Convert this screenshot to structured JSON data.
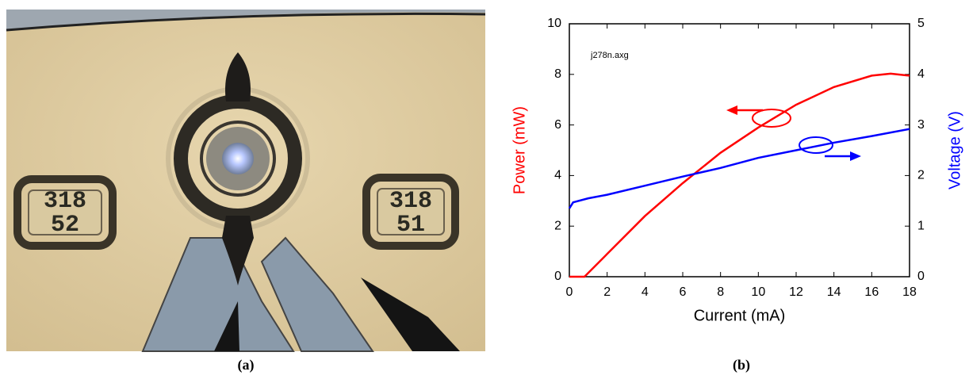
{
  "photo": {
    "chip_labels": [
      [
        "318",
        "52"
      ],
      [
        "318",
        "51"
      ]
    ]
  },
  "captions": [
    "(a)",
    "(b)"
  ],
  "chart_data": {
    "type": "line",
    "xlabel": "Current (mA)",
    "ylabel": "Power (mW)",
    "y2label": "Voltage (V)",
    "annotation": "j278n.axg",
    "xlim": [
      0,
      18
    ],
    "xticks": [
      0,
      2,
      4,
      6,
      8,
      10,
      12,
      14,
      16,
      18
    ],
    "ylim": [
      0,
      10
    ],
    "yticks": [
      0,
      2,
      4,
      6,
      8,
      10
    ],
    "y2lim": [
      0,
      5
    ],
    "y2ticks": [
      0,
      1,
      2,
      3,
      4,
      5
    ],
    "series": [
      {
        "name": "Power (mW)",
        "color": "#ff0000",
        "x": [
          0,
          0.8,
          2,
          4,
          6,
          7,
          8,
          10,
          12,
          14,
          16,
          17,
          18
        ],
        "values": [
          0,
          0,
          0.9,
          2.4,
          3.7,
          4.3,
          4.9,
          5.9,
          6.8,
          7.5,
          7.95,
          8.03,
          7.95
        ]
      },
      {
        "name": "Voltage (V)",
        "color": "#0000ff",
        "axis": "y2",
        "x": [
          0,
          0.2,
          1,
          2,
          4,
          6,
          8,
          10,
          12,
          14,
          16,
          18
        ],
        "values": [
          1.35,
          1.47,
          1.55,
          1.62,
          1.8,
          1.98,
          2.15,
          2.35,
          2.5,
          2.65,
          2.78,
          2.92
        ]
      }
    ]
  }
}
